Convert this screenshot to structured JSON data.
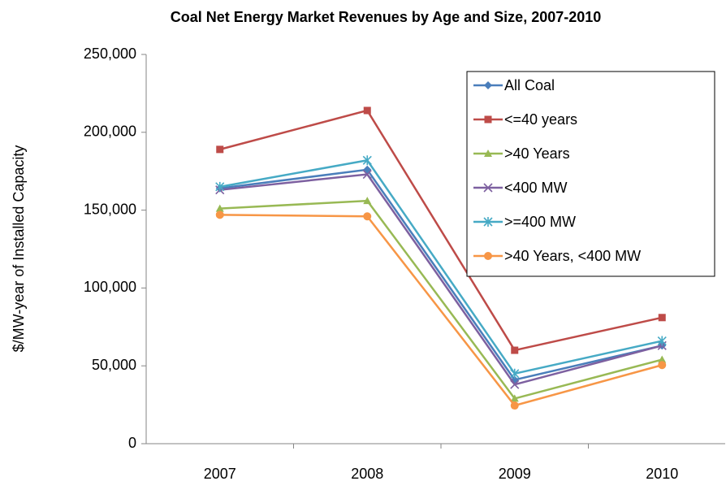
{
  "chart_data": {
    "type": "line",
    "title": "Coal Net Energy Market Revenues by Age and Size, 2007-2010",
    "y_label": "$/MW-year of Installed Capacity",
    "categories": [
      "2007",
      "2008",
      "2009",
      "2010"
    ],
    "ylim": [
      0,
      250000
    ],
    "yticks": [
      0,
      {
        "value": 50000,
        "label": "50,000"
      },
      {
        "value": 100000,
        "label": "100,000"
      },
      {
        "value": 150000,
        "label": "150,000"
      },
      {
        "value": 200000,
        "label": "200,000"
      },
      {
        "value": 250000,
        "label": "250,000"
      }
    ],
    "grid": false,
    "legend": "upper right",
    "series": [
      {
        "name": "All Coal",
        "color": "#4a7ebb",
        "marker": "diamond",
        "values": [
          164000,
          176000,
          41000,
          63000
        ]
      },
      {
        "name": "<=40 years",
        "color": "#be4b48",
        "marker": "square",
        "values": [
          189000,
          214000,
          60000,
          81000
        ]
      },
      {
        "name": ">40 Years",
        "color": "#98b954",
        "marker": "triangle",
        "values": [
          151000,
          156000,
          29000,
          54000
        ]
      },
      {
        "name": "<400 MW",
        "color": "#7d60a0",
        "marker": "x",
        "values": [
          163000,
          173000,
          38000,
          63000
        ]
      },
      {
        "name": ">=400 MW",
        "color": "#46aac5",
        "marker": "asterisk",
        "values": [
          165000,
          182000,
          45000,
          66000
        ]
      },
      {
        "name": ">40 Years, <400 MW",
        "color": "#f79646",
        "marker": "circle",
        "values": [
          147000,
          146000,
          24500,
          50500
        ]
      }
    ]
  }
}
